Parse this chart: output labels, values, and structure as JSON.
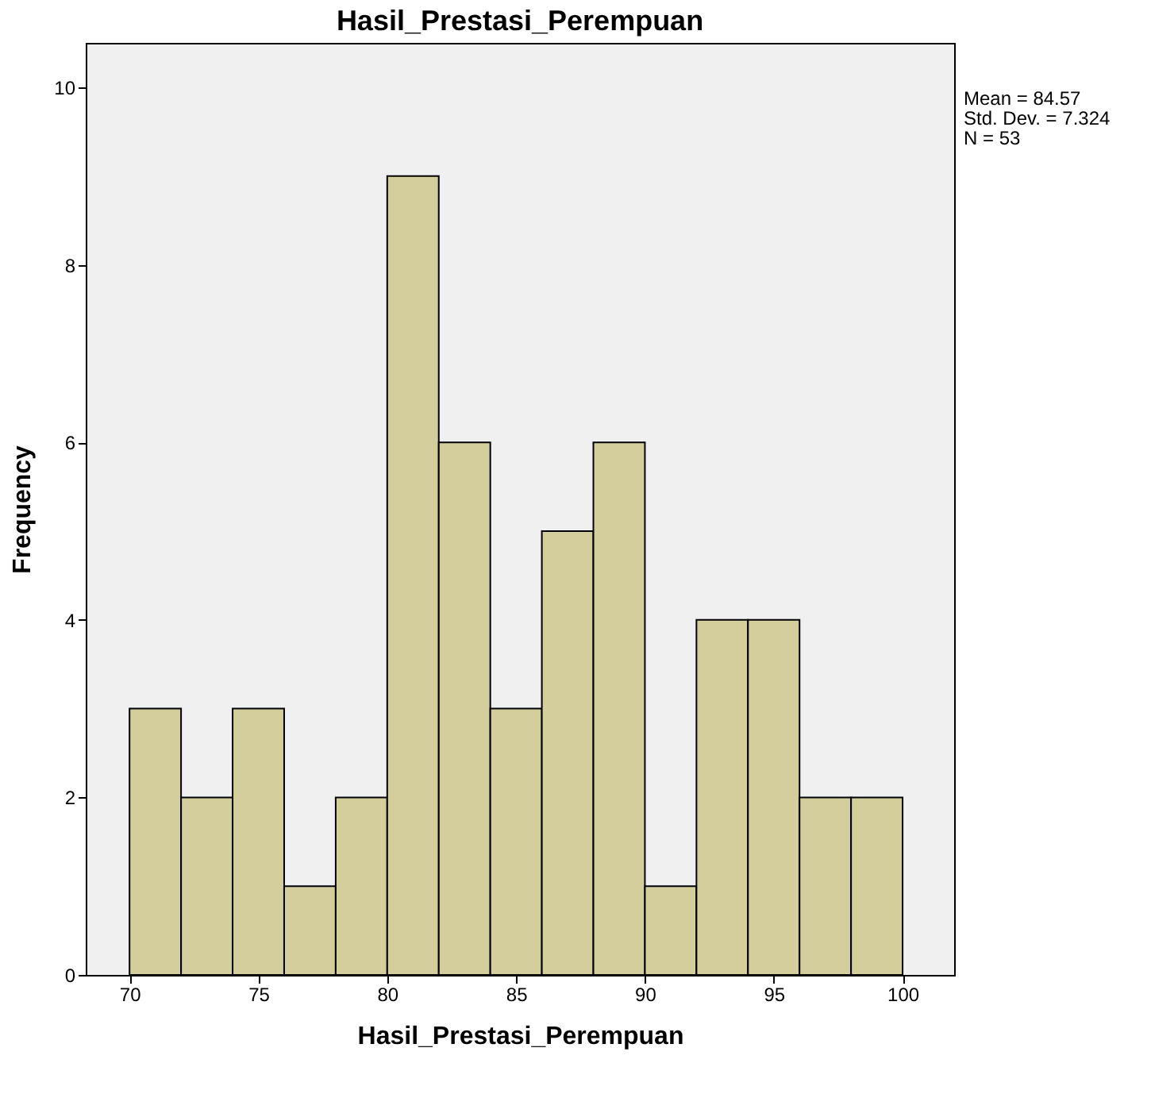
{
  "chart_data": {
    "type": "histogram",
    "title": "Hasil_Prestasi_Perempuan",
    "xlabel": "Hasil_Prestasi_Perempuan",
    "ylabel": "Frequency",
    "bins": [
      70,
      72,
      74,
      76,
      78,
      80,
      82,
      84,
      86,
      88,
      90,
      92,
      94,
      96,
      98,
      100
    ],
    "values": [
      3,
      2,
      3,
      1,
      2,
      9,
      6,
      3,
      5,
      6,
      1,
      4,
      4,
      2,
      2
    ],
    "color": "#d3ce9b",
    "xlim": [
      68.3,
      102
    ],
    "xticks": [
      70,
      75,
      80,
      85,
      90,
      95,
      100
    ],
    "ylim": [
      0,
      10.5
    ],
    "yticks": [
      0,
      2,
      4,
      6,
      8,
      10
    ],
    "grid": false,
    "annotations": [
      "Mean = 84.57",
      "Std. Dev. = 7.324",
      "N = 53"
    ]
  }
}
